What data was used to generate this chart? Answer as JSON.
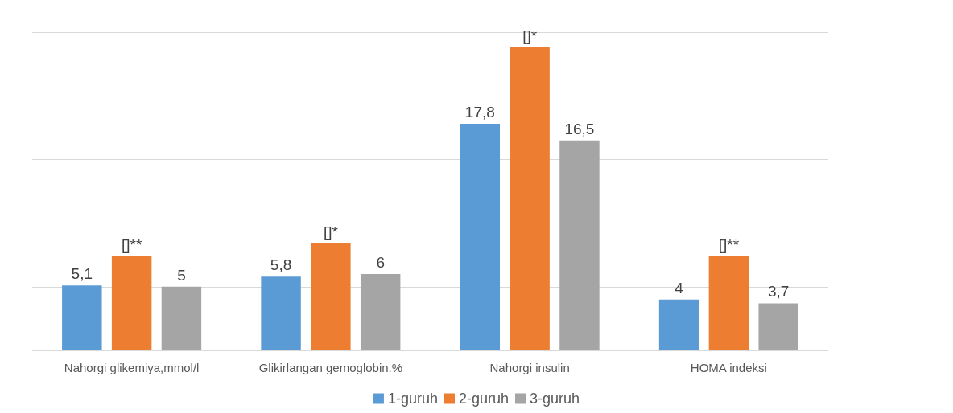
{
  "chart_data": {
    "type": "bar",
    "categories": [
      "Nahorgi glikemiya,mmol/l",
      "Glikirlangan gemoglobin.%",
      "Nahorgi insulin",
      "HOMA indeksi"
    ],
    "series": [
      {
        "name": "1-guruh",
        "color": "#5b9bd5",
        "values": [
          5.1,
          5.8,
          17.8,
          4
        ],
        "value_labels": [
          "5,1",
          "5,8",
          "17,8",
          "4"
        ]
      },
      {
        "name": "2-guruh",
        "color": "#ed7d31",
        "values": [
          7.4,
          8.4,
          23.8,
          7.4
        ],
        "value_labels": [
          "[]**",
          "[]*",
          "[]*",
          "[]**"
        ]
      },
      {
        "name": "3-guruh",
        "color": "#a5a5a5",
        "values": [
          5,
          6,
          16.5,
          3.7
        ],
        "value_labels": [
          "5",
          "6",
          "16,5",
          "3,7"
        ]
      }
    ],
    "ylim": [
      0,
      25
    ],
    "yticks": [
      {
        "value": 0,
        "label": null
      },
      {
        "value": 5,
        "label": null
      },
      {
        "value": 10,
        "label": null
      },
      {
        "value": 15,
        "label": null
      },
      {
        "value": 20,
        "label": null
      },
      {
        "value": 25,
        "label": null
      }
    ],
    "tick_labels": "x",
    "grid": "y",
    "legend": "bottom"
  }
}
